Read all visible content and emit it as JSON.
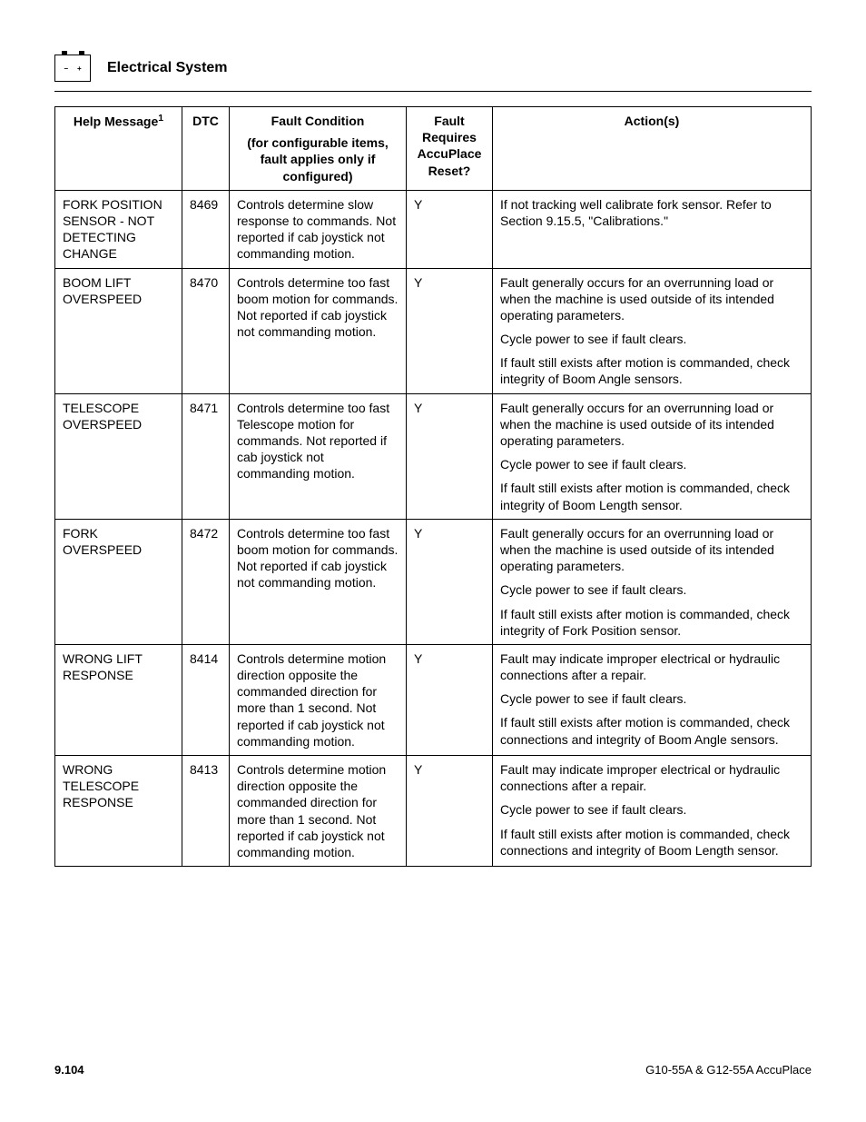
{
  "header": {
    "section_title": "Electrical System"
  },
  "table": {
    "headers": {
      "help": "Help Message",
      "help_sup": "1",
      "dtc": "DTC",
      "cond": "Fault Condition",
      "cond_sub": "(for configurable items, fault applies only if configured)",
      "reset": "Fault Requires AccuPlace Reset?",
      "action": "Action(s)"
    },
    "rows": [
      {
        "help": "FORK POSITION SENSOR - NOT DETECTING CHANGE",
        "dtc": "8469",
        "cond": "Controls determine slow response to commands. Not reported if cab joystick not commanding motion.",
        "reset": "Y",
        "actions": [
          "If not tracking well calibrate fork sensor. Refer to Section 9.15.5, \"Calibrations.\""
        ]
      },
      {
        "help": "BOOM LIFT OVERSPEED",
        "dtc": "8470",
        "cond": "Controls determine too fast boom motion for commands. Not reported if cab joystick not commanding motion.",
        "reset": "Y",
        "actions": [
          "Fault generally occurs for an overrunning load or when the machine is used outside of its intended operating parameters.",
          "Cycle power to see if fault clears.",
          "If fault still exists after motion is commanded, check integrity of Boom Angle sensors."
        ]
      },
      {
        "help": "TELESCOPE OVERSPEED",
        "dtc": "8471",
        "cond": "Controls determine too fast Telescope motion for commands. Not reported if cab joystick not commanding motion.",
        "reset": "Y",
        "actions": [
          "Fault generally occurs for an overrunning load or when the machine is used outside of its intended operating parameters.",
          "Cycle power to see if fault clears.",
          "If fault still exists after motion is commanded, check integrity of Boom Length sensor."
        ]
      },
      {
        "help": "FORK OVERSPEED",
        "dtc": "8472",
        "cond": "Controls determine too fast boom motion for commands. Not reported if cab joystick not commanding motion.",
        "reset": "Y",
        "actions": [
          "Fault generally occurs for an overrunning load or when the machine is used outside of its intended operating parameters.",
          "Cycle power to see if fault clears.",
          "If fault still exists after motion is commanded, check integrity of Fork Position sensor."
        ]
      },
      {
        "help": "WRONG LIFT RESPONSE",
        "dtc": "8414",
        "cond": "Controls determine motion direction opposite the commanded direction for more than 1 second. Not reported if cab joystick not commanding motion.",
        "reset": "Y",
        "actions": [
          "Fault may indicate improper electrical or hydraulic connections after a repair.",
          "Cycle power to see if fault clears.",
          "If fault still exists after motion is commanded, check connections and integrity of Boom Angle sensors."
        ]
      },
      {
        "help": "WRONG TELESCOPE RESPONSE",
        "dtc": "8413",
        "cond": "Controls determine motion direction opposite the commanded direction for more than 1 second. Not reported if cab joystick not commanding motion.",
        "reset": "Y",
        "actions": [
          "Fault may indicate improper electrical or hydraulic connections after a repair.",
          "Cycle power to see if fault clears.",
          "If fault still exists after motion is commanded, check connections and integrity of Boom Length sensor."
        ]
      }
    ]
  },
  "footer": {
    "page": "9.104",
    "doc": "G10-55A & G12-55A AccuPlace"
  }
}
